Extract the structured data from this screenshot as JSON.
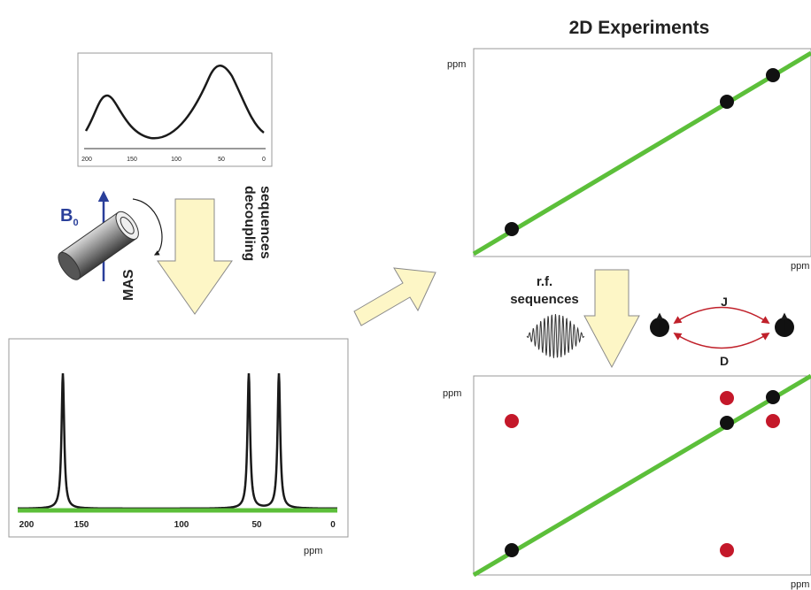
{
  "title": "2D Experiments",
  "spectrum_1d_broad": {
    "ticks": [
      200,
      150,
      100,
      50,
      0
    ]
  },
  "spectrum_1d_sharp": {
    "ticks": [
      200,
      150,
      100,
      50,
      0
    ],
    "axis_label": "ppm"
  },
  "rotor": {
    "field_label": "B",
    "field_subscript": "0",
    "spin_label": "MAS"
  },
  "decoupling_label": [
    "decoupling",
    "sequences"
  ],
  "rf_label": [
    "r.f.",
    "sequences"
  ],
  "couplings": {
    "top": "J",
    "bottom": "D"
  },
  "plot_2d_top": {
    "y_label": "ppm",
    "x_label": "ppm"
  },
  "plot_2d_bottom": {
    "y_label": "ppm",
    "x_label": "ppm"
  }
}
